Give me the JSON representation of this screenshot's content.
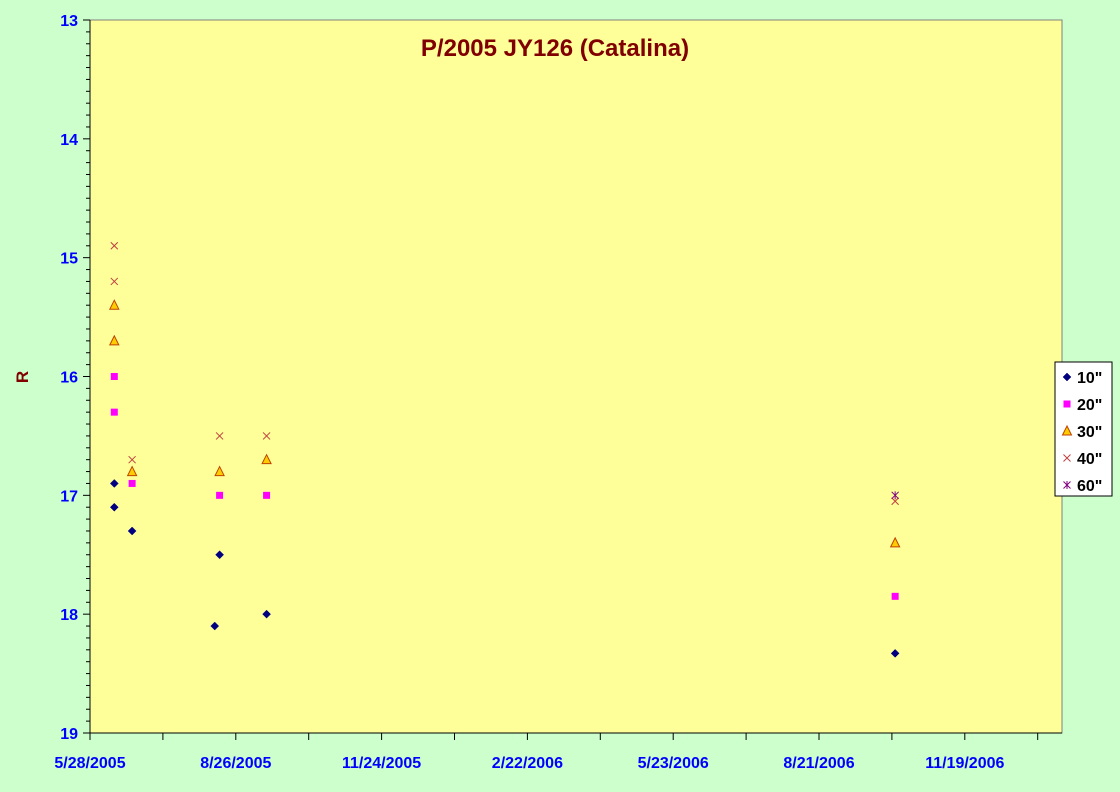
{
  "chart_data": {
    "type": "scatter",
    "title": "P/2005 JY126 (Catalina)",
    "xlabel": "",
    "ylabel": "R",
    "ylim": [
      13,
      19
    ],
    "y_inverted": true,
    "y_ticks": [
      13,
      14,
      15,
      16,
      17,
      18,
      19
    ],
    "xlim": [
      "2005-05-28",
      "2007-01-18"
    ],
    "x_ticks": [
      "5/28/2005",
      "8/26/2005",
      "11/24/2005",
      "2/22/2006",
      "5/23/2006",
      "8/21/2006",
      "11/19/2006"
    ],
    "grid": false,
    "legend_position": "right",
    "plot_background": "#ffff99",
    "page_background": "#ccffcc",
    "series": [
      {
        "name": "10\"",
        "marker": "diamond",
        "color": "#000080",
        "points": [
          {
            "x": "2005-06-12",
            "y": 16.9
          },
          {
            "x": "2005-06-12",
            "y": 17.1
          },
          {
            "x": "2005-06-23",
            "y": 17.3
          },
          {
            "x": "2005-08-13",
            "y": 18.1
          },
          {
            "x": "2005-08-16",
            "y": 17.5
          },
          {
            "x": "2005-09-14",
            "y": 18.0
          },
          {
            "x": "2006-10-07",
            "y": 18.33
          }
        ]
      },
      {
        "name": "20\"",
        "marker": "square",
        "color": "#ff00ff",
        "points": [
          {
            "x": "2005-06-12",
            "y": 16.0
          },
          {
            "x": "2005-06-12",
            "y": 16.3
          },
          {
            "x": "2005-06-23",
            "y": 16.9
          },
          {
            "x": "2005-08-16",
            "y": 17.0
          },
          {
            "x": "2005-09-14",
            "y": 17.0
          },
          {
            "x": "2006-10-07",
            "y": 17.85
          }
        ]
      },
      {
        "name": "30\"",
        "marker": "triangle",
        "color": "#ffcc00",
        "stroke": "#c04000",
        "points": [
          {
            "x": "2005-06-12",
            "y": 15.4
          },
          {
            "x": "2005-06-12",
            "y": 15.7
          },
          {
            "x": "2005-06-23",
            "y": 16.8
          },
          {
            "x": "2005-08-16",
            "y": 16.8
          },
          {
            "x": "2005-09-14",
            "y": 16.7
          },
          {
            "x": "2006-10-07",
            "y": 17.4
          }
        ]
      },
      {
        "name": "40\"",
        "marker": "x",
        "color": "#c04040",
        "points": [
          {
            "x": "2005-06-12",
            "y": 14.9
          },
          {
            "x": "2005-06-12",
            "y": 15.2
          },
          {
            "x": "2005-06-23",
            "y": 16.7
          },
          {
            "x": "2005-08-16",
            "y": 16.5
          },
          {
            "x": "2005-09-14",
            "y": 16.5
          },
          {
            "x": "2006-10-07",
            "y": 17.05
          }
        ]
      },
      {
        "name": "60\"",
        "marker": "star",
        "color": "#800080",
        "points": [
          {
            "x": "2006-10-07",
            "y": 17.0
          }
        ]
      }
    ]
  }
}
